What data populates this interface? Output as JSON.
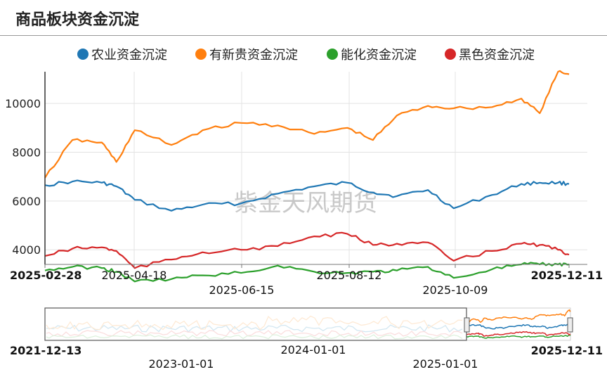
{
  "title": "商品板块资金沉淀",
  "watermark": "紫金天风期货",
  "legend": [
    {
      "name": "农业资金沉淀",
      "color": "#1f77b4"
    },
    {
      "name": "有新贵资金沉淀",
      "color": "#ff7f0e"
    },
    {
      "name": "能化资金沉淀",
      "color": "#2ca02c"
    },
    {
      "name": "黑色资金沉淀",
      "color": "#d62728"
    }
  ],
  "chart_data": {
    "type": "line",
    "title": "商品板块资金沉淀",
    "x_start": "2025-02-28",
    "x_end": "2025-12-11",
    "ylim": [
      3400,
      11300
    ],
    "y_ticks": [
      "4000",
      "6000",
      "8000",
      "10000"
    ],
    "x_ticks": [
      {
        "label": "2025-02-28",
        "bold": true,
        "row": 1
      },
      {
        "label": "2025-04-18",
        "bold": false,
        "row": 1
      },
      {
        "label": "2025-06-15",
        "bold": false,
        "row": 2
      },
      {
        "label": "2025-08-12",
        "bold": false,
        "row": 1
      },
      {
        "label": "2025-10-09",
        "bold": false,
        "row": 2
      },
      {
        "label": "2025-12-11",
        "bold": true,
        "row": 1
      }
    ],
    "x": [
      "2025-02-28",
      "2025-03-15",
      "2025-03-31",
      "2025-04-08",
      "2025-04-18",
      "2025-05-08",
      "2025-05-25",
      "2025-06-15",
      "2025-07-05",
      "2025-07-25",
      "2025-08-12",
      "2025-08-26",
      "2025-09-08",
      "2025-09-25",
      "2025-10-09",
      "2025-10-30",
      "2025-11-15",
      "2025-11-25",
      "2025-12-05",
      "2025-12-11"
    ],
    "series": [
      {
        "name": "农业资金沉淀",
        "color": "#1f77b4",
        "values": [
          6650,
          6800,
          6750,
          6600,
          6050,
          5600,
          5850,
          5900,
          6300,
          6600,
          6750,
          6350,
          6200,
          6450,
          5700,
          6250,
          6700,
          6750,
          6750,
          6700
        ]
      },
      {
        "name": "有新贵资金沉淀",
        "color": "#ff7f0e",
        "values": [
          6950,
          8500,
          8400,
          7600,
          8900,
          8300,
          8900,
          9200,
          9100,
          8750,
          9000,
          8500,
          9500,
          9900,
          9800,
          9850,
          10200,
          9600,
          11300,
          11200
        ]
      },
      {
        "name": "能化资金沉淀",
        "color": "#2ca02c",
        "values": [
          3150,
          3300,
          3250,
          3100,
          2700,
          2800,
          2950,
          3050,
          3350,
          3100,
          3050,
          3100,
          3150,
          3300,
          2850,
          3200,
          3400,
          3400,
          3400,
          3400
        ]
      },
      {
        "name": "黑色资金沉淀",
        "color": "#d62728",
        "values": [
          3750,
          4050,
          4100,
          3950,
          3250,
          3600,
          3900,
          4000,
          4150,
          4550,
          4650,
          4200,
          4250,
          4300,
          3550,
          3950,
          4250,
          4200,
          4000,
          3800
        ]
      }
    ],
    "navigator": {
      "start_label": "2021-12-13",
      "end_label": "2025-12-11",
      "ticks": [
        "2023-01-01",
        "2024-01-01",
        "2025-01-01"
      ]
    }
  }
}
